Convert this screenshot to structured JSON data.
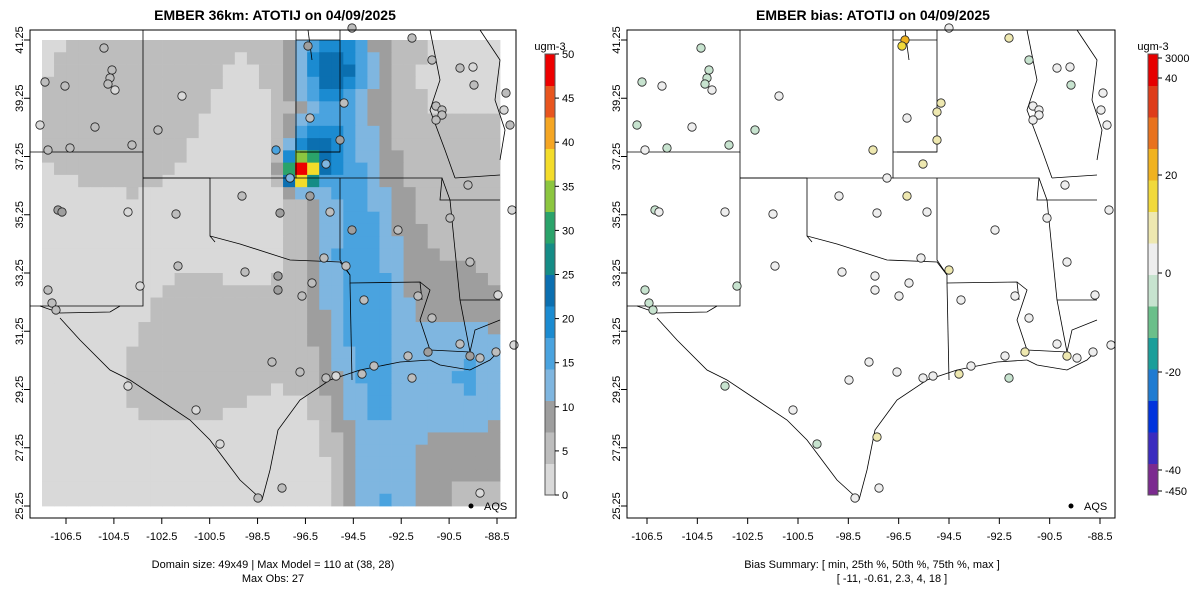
{
  "left_panel": {
    "title": "EMBER 36km: ATOTIJ on 04/09/2025",
    "colorbar": {
      "unit": "ugm-3",
      "ticks": [
        "0",
        "5",
        "10",
        "15",
        "20",
        "25",
        "30",
        "35",
        "40",
        "45",
        "50"
      ],
      "colors": [
        "#d9d9d9",
        "#bdbdbd",
        "#9e9e9e",
        "#7fb6e0",
        "#4aa3df",
        "#1b8bd1",
        "#0b6fb0",
        "#158c86",
        "#2aa36a",
        "#8cc63f",
        "#f3dc2a",
        "#f5a623",
        "#e8551e",
        "#ee0000"
      ]
    },
    "legend": "AQS",
    "footer": [
      "Domain size: 49x49 | Max Model = 110 at (38, 28)",
      "Max Obs: 27"
    ]
  },
  "right_panel": {
    "title": "EMBER bias: ATOTIJ on 04/09/2025",
    "colorbar": {
      "unit": "ugm-3",
      "ticks": [
        "3000",
        "40",
        "20",
        "0",
        "-20",
        "-40",
        "-450"
      ],
      "colors": [
        "#7b2a8f",
        "#3b2bbf",
        "#0033dd",
        "#1f7bd1",
        "#1b9e9a",
        "#6bbf8a",
        "#c7e3cf",
        "#eeeeee",
        "#eee8b0",
        "#f1d93a",
        "#f0b21f",
        "#e8721e",
        "#de3d1a",
        "#e60000"
      ]
    },
    "legend": "AQS",
    "footer": [
      "Bias Summary: [ min, 25th %, 50th %, 75th %, max ]",
      "[ -11,   -0.61,   2.3,   4,   18 ]"
    ]
  },
  "axes": {
    "lon_ticks": [
      "-106.5",
      "-104.5",
      "-102.5",
      "-100.5",
      "-98.5",
      "-96.5",
      "-94.5",
      "-92.5",
      "-90.5",
      "-88.5"
    ],
    "lat_ticks": [
      "25.25",
      "27.25",
      "29.25",
      "31.25",
      "33.25",
      "35.25",
      "37.25",
      "39.25",
      "41.25"
    ]
  }
}
